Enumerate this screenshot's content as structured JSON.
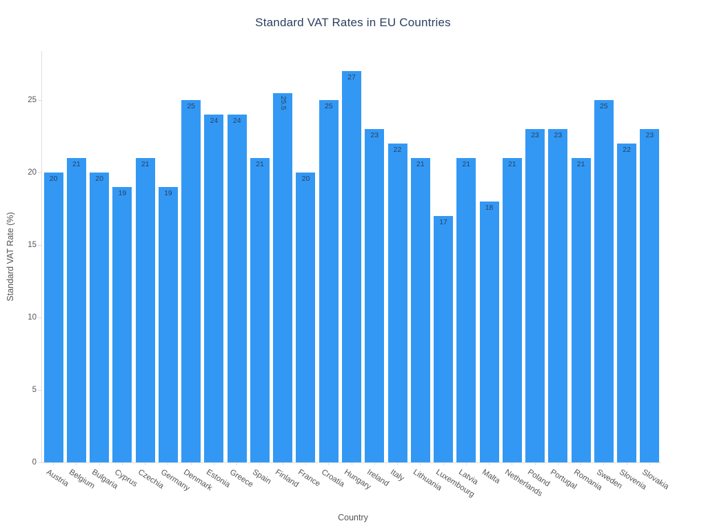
{
  "chart_data": {
    "type": "bar",
    "title": "Standard VAT Rates in EU Countries",
    "xlabel": "Country",
    "ylabel": "Standard VAT Rate (%)",
    "categories": [
      "Austria",
      "Belgium",
      "Bulgaria",
      "Cyprus",
      "Czechia",
      "Germany",
      "Denmark",
      "Estonia",
      "Greece",
      "Spain",
      "Finland",
      "France",
      "Croatia",
      "Hungary",
      "Ireland",
      "Italy",
      "Lithuania",
      "Luxembourg",
      "Latvia",
      "Malta",
      "Netherlands",
      "Poland",
      "Portugal",
      "Romania",
      "Sweden",
      "Slovenia",
      "Slovakia"
    ],
    "values": [
      20,
      21,
      20,
      19,
      21,
      19,
      25,
      24,
      24,
      21,
      25.5,
      20,
      25,
      27,
      23,
      22,
      21,
      17,
      21,
      18,
      21,
      23,
      23,
      21,
      25,
      22,
      23
    ],
    "yticks": [
      0,
      5,
      10,
      15,
      20,
      25
    ],
    "ylim": [
      0,
      28.4
    ],
    "grid": false,
    "legend": "none",
    "bar_color": "#3398f4",
    "label_color": "#2a3f5f",
    "axis_color": "#d9dde3",
    "tick_text_color": "#545454"
  }
}
